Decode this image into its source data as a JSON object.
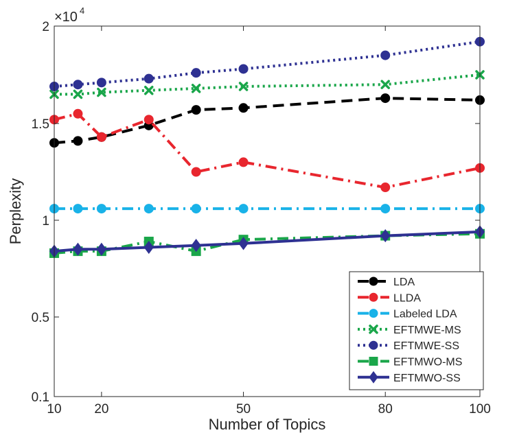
{
  "chart_data": {
    "type": "line",
    "xlabel": "Number of Topics",
    "ylabel": "Perplexity",
    "y_multiplier": {
      "base": "×10",
      "exponent": "4"
    },
    "xlim": [
      10,
      100
    ],
    "ylim": [
      0.1,
      2
    ],
    "x_ticks": [
      10,
      20,
      50,
      80,
      100
    ],
    "x_tick_labels": [
      "10",
      "20",
      "50",
      "80",
      "100"
    ],
    "y_ticks": [
      0.1,
      0.5,
      1,
      1.5,
      2
    ],
    "y_tick_labels": [
      "0.1",
      "0.5",
      "1",
      "1.5",
      "2"
    ],
    "x": [
      10,
      15,
      20,
      30,
      40,
      50,
      80,
      100
    ],
    "legend_position": "bottom-right",
    "grid": false,
    "series": [
      {
        "name": "LDA",
        "color": "#000000",
        "dash": "long-dash",
        "marker": "circle",
        "values": [
          1.4,
          1.41,
          1.43,
          1.49,
          1.57,
          1.58,
          1.63,
          1.62
        ]
      },
      {
        "name": "LLDA",
        "color": "#e8262e",
        "dash": "dash-dot",
        "marker": "circle",
        "values": [
          1.52,
          1.55,
          1.43,
          1.52,
          1.25,
          1.3,
          1.17,
          1.27
        ]
      },
      {
        "name": "Labeled LDA",
        "color": "#19b2e8",
        "dash": "dash-dot",
        "marker": "circle",
        "values": [
          1.06,
          1.06,
          1.06,
          1.06,
          1.06,
          1.06,
          1.06,
          1.06
        ]
      },
      {
        "name": "EFTMWE-MS",
        "color": "#1aa64a",
        "dash": "dotted",
        "marker": "x",
        "values": [
          1.65,
          1.65,
          1.66,
          1.67,
          1.68,
          1.69,
          1.7,
          1.75
        ]
      },
      {
        "name": "EFTMWE-SS",
        "color": "#2e3192",
        "dash": "dotted",
        "marker": "circle",
        "values": [
          1.69,
          1.7,
          1.71,
          1.73,
          1.76,
          1.78,
          1.85,
          1.92
        ]
      },
      {
        "name": "EFTMWO-MS",
        "color": "#1aa64a",
        "dash": "dash-dot",
        "marker": "square",
        "values": [
          0.83,
          0.84,
          0.84,
          0.89,
          0.84,
          0.9,
          0.92,
          0.93
        ]
      },
      {
        "name": "EFTMWO-SS",
        "color": "#2e3192",
        "dash": "solid",
        "marker": "diamond",
        "values": [
          0.84,
          0.85,
          0.85,
          0.86,
          0.87,
          0.88,
          0.92,
          0.94
        ]
      }
    ]
  }
}
